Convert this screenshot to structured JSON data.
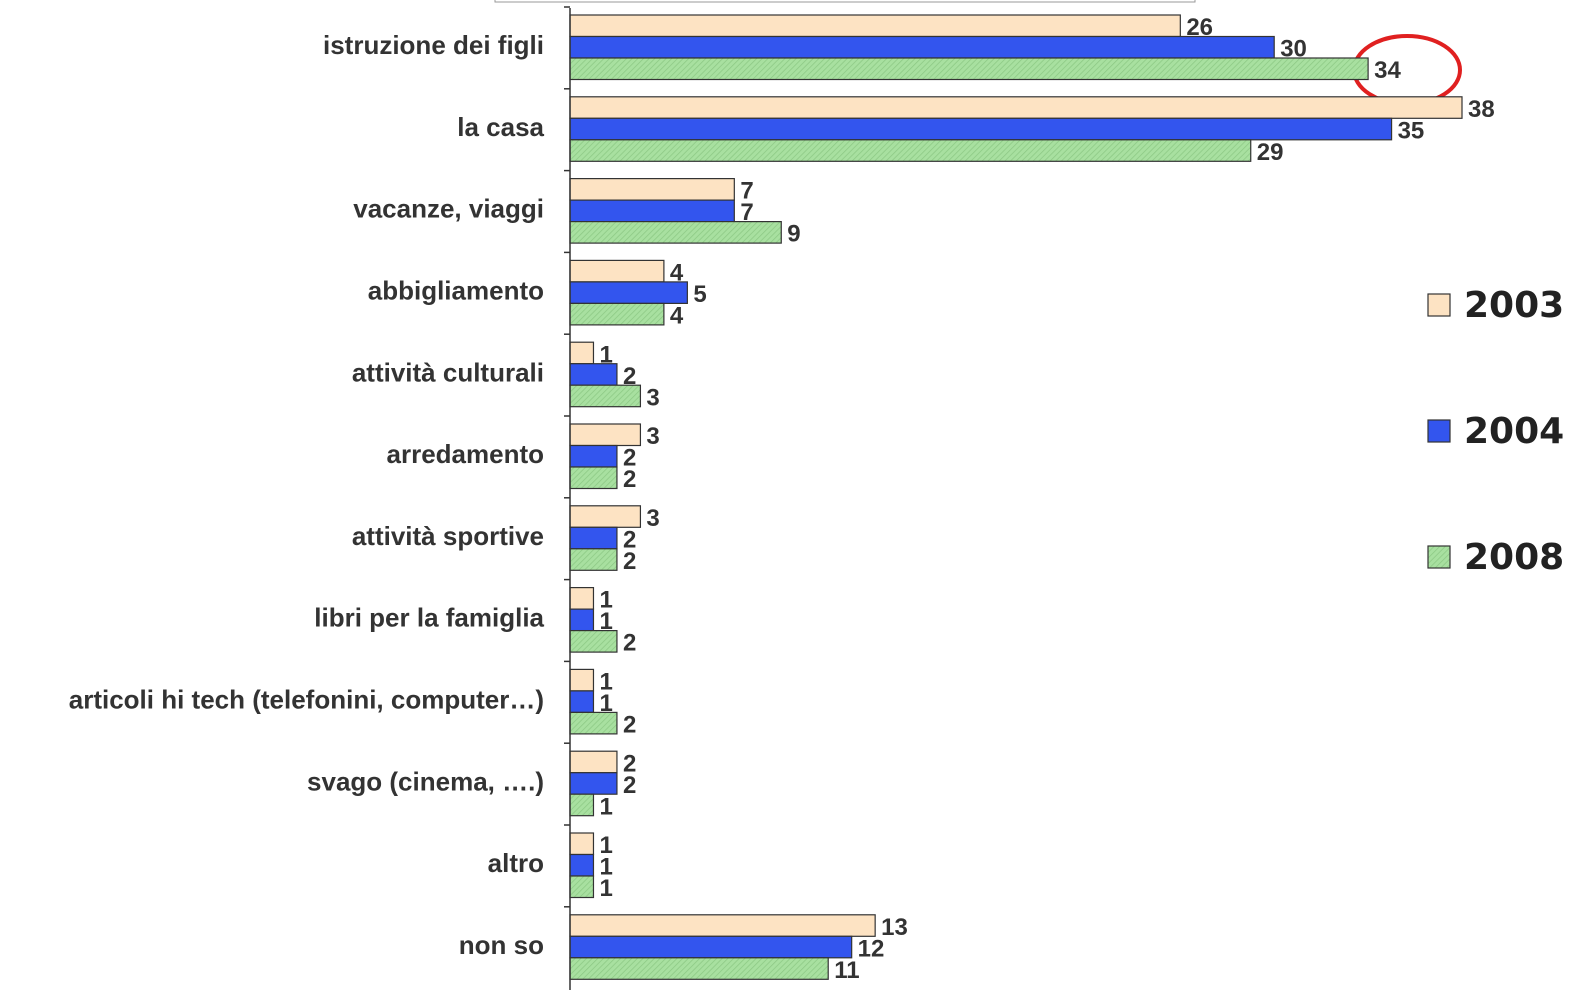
{
  "chart_data": {
    "type": "bar",
    "orientation": "horizontal",
    "categories": [
      "istruzione dei figli",
      "la casa",
      "vacanze, viaggi",
      "abbigliamento",
      "attività culturali",
      "arredamento",
      "attività sportive",
      "libri per la famiglia",
      "articoli hi tech (telefonini, computer…)",
      "svago (cinema, ….)",
      "altro",
      "non so"
    ],
    "series": [
      {
        "name": "2003",
        "color": "#fde3c3",
        "values": [
          26,
          38,
          7,
          4,
          1,
          3,
          3,
          1,
          1,
          2,
          1,
          13
        ]
      },
      {
        "name": "2004",
        "color": "#3355ee",
        "values": [
          30,
          35,
          7,
          5,
          2,
          2,
          2,
          1,
          1,
          2,
          1,
          12
        ]
      },
      {
        "name": "2008",
        "color": "#a8e0a0",
        "values": [
          34,
          29,
          9,
          4,
          3,
          2,
          2,
          2,
          2,
          1,
          1,
          11
        ]
      }
    ],
    "legend": "right"
  }
}
